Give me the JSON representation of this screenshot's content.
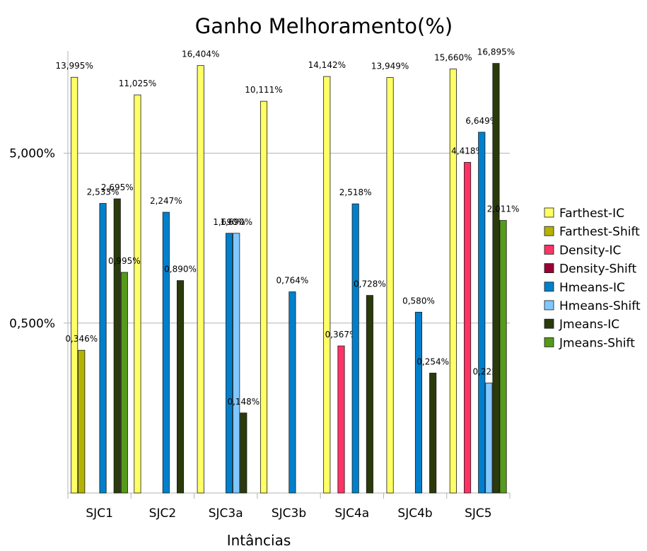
{
  "chart_data": {
    "type": "bar",
    "title": "Ganho Melhoramento(%)",
    "xlabel": "Intâncias",
    "ylabel": "",
    "yscale": "log",
    "ylim": [
      0.05,
      20
    ],
    "yticks": [
      {
        "value": 5,
        "label": "5,000%"
      },
      {
        "value": 0.5,
        "label": "0,500%"
      }
    ],
    "grid": true,
    "legend_position": "right",
    "categories": [
      "SJC1",
      "SJC2",
      "SJC3a",
      "SJC3b",
      "SJC4a",
      "SJC4b",
      "SJC5"
    ],
    "series": [
      {
        "name": "Farthest-IC",
        "color": "#ffff66",
        "values": [
          13.995,
          11.025,
          16.404,
          10.111,
          14.142,
          13.949,
          15.66
        ],
        "labels": [
          "13,995%",
          "11,025%",
          "16,404%",
          "10,111%",
          "14,142%",
          "13,949%",
          "15,660%"
        ]
      },
      {
        "name": "Farthest-Shift",
        "color": "#b3b300",
        "values": [
          0.346,
          null,
          null,
          null,
          null,
          null,
          null
        ],
        "labels": [
          "0,346%",
          null,
          null,
          null,
          null,
          null,
          null
        ]
      },
      {
        "name": "Density-IC",
        "color": "#ff3366",
        "values": [
          null,
          null,
          null,
          null,
          0.367,
          null,
          4.418
        ],
        "labels": [
          null,
          null,
          null,
          null,
          "0,367%",
          null,
          "4,418%"
        ]
      },
      {
        "name": "Density-Shift",
        "color": "#990033",
        "values": [
          null,
          null,
          null,
          null,
          null,
          null,
          null
        ],
        "labels": [
          null,
          null,
          null,
          null,
          null,
          null,
          null
        ]
      },
      {
        "name": "Hmeans-IC",
        "color": "#0080cc",
        "values": [
          2.533,
          2.247,
          1.69,
          0.764,
          2.518,
          0.58,
          6.649
        ],
        "labels": [
          "2,533%",
          "2,247%",
          "1,690%",
          "0,764%",
          "2,518%",
          "0,580%",
          "6,649%"
        ]
      },
      {
        "name": "Hmeans-Shift",
        "color": "#80c8ff",
        "values": [
          null,
          null,
          1.69,
          null,
          null,
          null,
          0.222
        ],
        "labels": [
          null,
          null,
          "1,690%",
          null,
          null,
          null,
          "0,222%"
        ]
      },
      {
        "name": "Jmeans-IC",
        "color": "#2b3a0a",
        "values": [
          2.695,
          0.89,
          0.148,
          null,
          0.728,
          0.254,
          16.895
        ],
        "labels": [
          "2,695%",
          "0,890%",
          "0,148%",
          null,
          "0,728%",
          "0,254%",
          "16,895%"
        ]
      },
      {
        "name": "Jmeans-Shift",
        "color": "#559a1a",
        "values": [
          0.995,
          null,
          null,
          null,
          null,
          null,
          2.011
        ],
        "labels": [
          "0,995%",
          null,
          null,
          null,
          null,
          null,
          "2,011%"
        ]
      }
    ]
  }
}
